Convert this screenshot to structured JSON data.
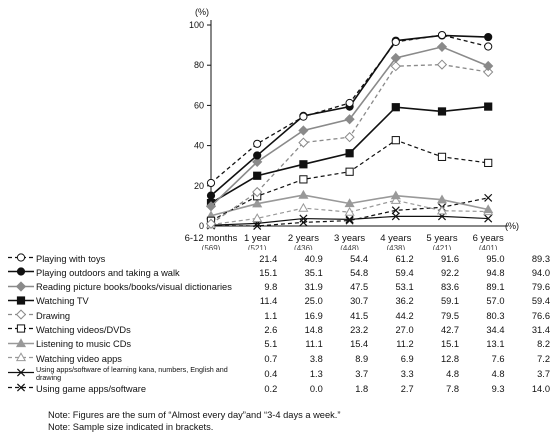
{
  "chart_data": {
    "type": "line",
    "yunit": "(%)",
    "xunit": "(%)",
    "ylim": [
      0,
      100
    ],
    "yticks": [
      0,
      20,
      40,
      60,
      80,
      100
    ],
    "categories": [
      {
        "label": "6-12 months",
        "n": "(569)"
      },
      {
        "label": "1 year",
        "n": "(521)"
      },
      {
        "label": "2 years",
        "n": "(436)"
      },
      {
        "label": "3 years",
        "n": "(448)"
      },
      {
        "label": "4 years",
        "n": "(438)"
      },
      {
        "label": "5 years",
        "n": "(421)"
      },
      {
        "label": "6 years",
        "n": "(401)"
      }
    ],
    "series": [
      {
        "name": "Playing with toys",
        "values": [
          21.4,
          40.9,
          54.4,
          61.2,
          91.6,
          95.0,
          89.3
        ],
        "display": [
          "21.4",
          "40.9",
          "54.4",
          "61.2",
          "91.6",
          "95.0",
          "89.3"
        ],
        "color": "#111111",
        "dash": "4,3",
        "marker": "circle-open",
        "width": 1.3
      },
      {
        "name": "Playing outdoors and taking a walk",
        "values": [
          15.1,
          35.1,
          54.8,
          59.4,
          92.2,
          94.8,
          94.0
        ],
        "display": [
          "15.1",
          "35.1",
          "54.8",
          "59.4",
          "92.2",
          "94.8",
          "94.0"
        ],
        "color": "#111111",
        "dash": "",
        "marker": "circle-filled",
        "width": 1.6
      },
      {
        "name": "Reading picture books/books/visual dictionaries",
        "values": [
          9.8,
          31.9,
          47.5,
          53.1,
          83.6,
          89.1,
          79.6
        ],
        "display": [
          "9.8",
          "31.9",
          "47.5",
          "53.1",
          "83.6",
          "89.1",
          "79.6"
        ],
        "color": "#8a8a8a",
        "dash": "",
        "marker": "diamond-filled",
        "width": 1.6
      },
      {
        "name": "Watching TV",
        "values": [
          11.4,
          25.0,
          30.7,
          36.2,
          59.1,
          57.0,
          59.4
        ],
        "display": [
          "11.4",
          "25.0",
          "30.7",
          "36.2",
          "59.1",
          "57.0",
          "59.4"
        ],
        "color": "#111111",
        "dash": "",
        "marker": "square-filled",
        "width": 1.6
      },
      {
        "name": "Drawing",
        "values": [
          1.1,
          16.9,
          41.5,
          44.2,
          79.5,
          80.3,
          76.6
        ],
        "display": [
          "1.1",
          "16.9",
          "41.5",
          "44.2",
          "79.5",
          "80.3",
          "76.6"
        ],
        "color": "#8a8a8a",
        "dash": "4,3",
        "marker": "diamond-open",
        "width": 1.3
      },
      {
        "name": "Watching videos/DVDs",
        "values": [
          2.6,
          14.8,
          23.2,
          27.0,
          42.7,
          34.4,
          31.4
        ],
        "display": [
          "2.6",
          "14.8",
          "23.2",
          "27.0",
          "42.7",
          "34.4",
          "31.4"
        ],
        "color": "#111111",
        "dash": "4,3",
        "marker": "square-open",
        "width": 1.2
      },
      {
        "name": "Listening to music CDs",
        "values": [
          5.1,
          11.1,
          15.4,
          11.2,
          15.1,
          13.1,
          8.2
        ],
        "display": [
          "5.1",
          "11.1",
          "15.4",
          "11.2",
          "15.1",
          "13.1",
          "8.2"
        ],
        "color": "#999999",
        "dash": "",
        "marker": "triangle-filled",
        "width": 1.6
      },
      {
        "name": "Watching video apps",
        "values": [
          0.7,
          3.8,
          8.9,
          6.9,
          12.8,
          7.6,
          7.2
        ],
        "display": [
          "0.7",
          "3.8",
          "8.9",
          "6.9",
          "12.8",
          "7.6",
          "7.2"
        ],
        "color": "#999999",
        "dash": "4,3",
        "marker": "triangle-open",
        "width": 1.2
      },
      {
        "name": "Using apps/software of learning kana, numbers, English and drawing",
        "values": [
          0.4,
          1.3,
          3.7,
          3.3,
          4.8,
          4.8,
          3.7
        ],
        "display": [
          "0.4",
          "1.3",
          "3.7",
          "3.3",
          "4.8",
          "4.8",
          "3.7"
        ],
        "color": "#111111",
        "dash": "",
        "marker": "x",
        "width": 1.2
      },
      {
        "name": "Using game apps/software",
        "values": [
          0.2,
          0.0,
          1.8,
          2.7,
          7.8,
          9.3,
          14.0
        ],
        "display": [
          "0.2",
          "0.0",
          "1.8",
          "2.7",
          "7.8",
          "9.3",
          "14.0"
        ],
        "color": "#111111",
        "dash": "4,3",
        "marker": "x",
        "width": 1.2
      }
    ]
  },
  "notes": [
    "Note: Figures are the sum of “Almost every day”and “3-4 days a week.”",
    "Note: Sample size indicated in brackets."
  ]
}
